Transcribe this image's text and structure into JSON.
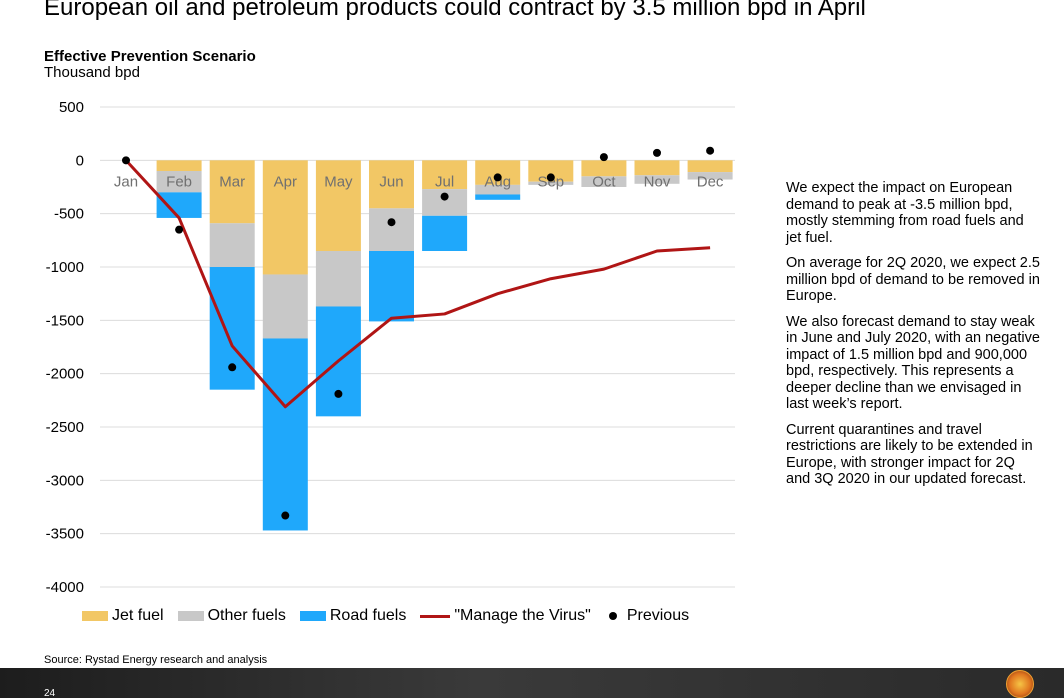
{
  "title": "European oil and petroleum products could contract by 3.5 million bpd in April",
  "subtitle": "Effective Prevention Scenario",
  "unit_label": "Thousand bpd",
  "source": "Source: Rystad Energy research and analysis",
  "page_number": "24",
  "commentary": [
    "We expect the impact on European demand to peak at -3.5 million bpd, mostly stemming from road fuels and jet fuel.",
    "On average for 2Q 2020, we expect 2.5 million bpd of demand to be removed in Europe.",
    "We also forecast demand to stay weak in June and July 2020, with an negative impact of 1.5 million bpd and 900,000 bpd, respectively. This represents a deeper decline than we envisaged in last week’s report.",
    "Current quarantines and travel restrictions are likely to be extended in Europe, with stronger impact for 2Q and 3Q 2020 in our updated forecast."
  ],
  "colors": {
    "jet_fuel": "#f2c765",
    "other_fuels": "#c8c8c8",
    "road_fuels": "#1fa8fb",
    "manage_the_virus": "#b01515",
    "previous": "#000000",
    "grid": "#dcdcdc"
  },
  "legend": [
    {
      "label": "Jet fuel",
      "kind": "box",
      "color": "#f2c765"
    },
    {
      "label": "Other fuels",
      "kind": "box",
      "color": "#c8c8c8"
    },
    {
      "label": "Road fuels",
      "kind": "box",
      "color": "#1fa8fb"
    },
    {
      "label": "\"Manage the Virus\"",
      "kind": "line",
      "color": "#b01515"
    },
    {
      "label": "Previous",
      "kind": "dot",
      "color": "#000000"
    }
  ],
  "chart_data": {
    "type": "bar",
    "stacked": true,
    "categories": [
      "Jan",
      "Feb",
      "Mar",
      "Apr",
      "May",
      "Jun",
      "Jul",
      "Aug",
      "Sep",
      "Oct",
      "Nov",
      "Dec"
    ],
    "ylim": [
      -4000,
      500
    ],
    "yticks": [
      500,
      0,
      -500,
      -1000,
      -1500,
      -2000,
      -2500,
      -3000,
      -3500,
      -4000
    ],
    "grid": true,
    "legend_position": "bottom",
    "series": [
      {
        "name": "Jet fuel",
        "type": "bar",
        "values": [
          0,
          -100,
          -590,
          -1070,
          -850,
          -450,
          -270,
          -230,
          -200,
          -150,
          -140,
          -110
        ]
      },
      {
        "name": "Other fuels",
        "type": "bar",
        "values": [
          0,
          -200,
          -410,
          -600,
          -520,
          -400,
          -250,
          -90,
          -30,
          -100,
          -80,
          -70
        ]
      },
      {
        "name": "Road fuels",
        "type": "bar",
        "values": [
          0,
          -240,
          -1150,
          -1800,
          -1030,
          -660,
          -330,
          -50,
          0,
          0,
          0,
          0
        ]
      },
      {
        "name": "\"Manage the Virus\"",
        "type": "line",
        "values": [
          0,
          -540,
          -1740,
          -2310,
          -1880,
          -1480,
          -1440,
          -1250,
          -1110,
          -1020,
          -850,
          -820
        ]
      },
      {
        "name": "Previous",
        "type": "scatter",
        "values": [
          0,
          -650,
          -1940,
          -3330,
          -2190,
          -580,
          -340,
          -160,
          -160,
          30,
          70,
          90
        ]
      }
    ]
  }
}
